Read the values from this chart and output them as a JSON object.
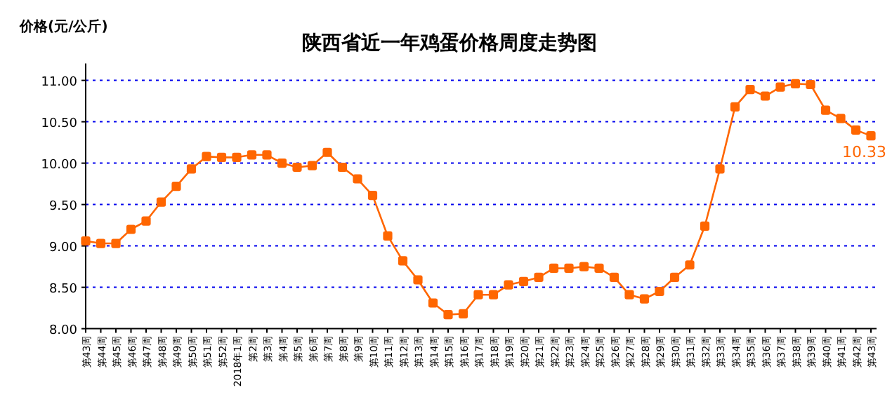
{
  "chart_data": {
    "type": "line",
    "title": "陕西省近一年鸡蛋价格周度走势图",
    "ylabel": "价格(元/公斤)",
    "categories": [
      "第43周",
      "第44周",
      "第45周",
      "第46周",
      "第47周",
      "第48周",
      "第49周",
      "第50周",
      "第51周",
      "第52周",
      "2018年1周",
      "第2周",
      "第3周",
      "第4周",
      "第5周",
      "第6周",
      "第7周",
      "第8周",
      "第9周",
      "第10周",
      "第11周",
      "第12周",
      "第13周",
      "第14周",
      "第15周",
      "第16周",
      "第17周",
      "第18周",
      "第19周",
      "第20周",
      "第21周",
      "第22周",
      "第23周",
      "第24周",
      "第25周",
      "第26周",
      "第27周",
      "第28周",
      "第29周",
      "第30周",
      "第31周",
      "第32周",
      "第33周",
      "第34周",
      "第35周",
      "第36周",
      "第37周",
      "第38周",
      "第39周",
      "第40周",
      "第41周",
      "第42周",
      "第43周"
    ],
    "series": [
      {
        "color": "#ff6600",
        "values": [
          9.06,
          9.03,
          9.03,
          9.2,
          9.3,
          9.53,
          9.72,
          9.93,
          10.08,
          10.07,
          10.07,
          10.1,
          10.1,
          10.0,
          9.95,
          9.97,
          10.13,
          9.95,
          9.81,
          9.61,
          9.12,
          8.82,
          8.59,
          8.31,
          8.17,
          8.18,
          8.41,
          8.41,
          8.53,
          8.57,
          8.62,
          8.73,
          8.73,
          8.75,
          8.73,
          8.62,
          8.41,
          8.36,
          8.45,
          8.62,
          8.77,
          9.24,
          9.93,
          10.68,
          10.89,
          10.81,
          10.92,
          10.96,
          10.95,
          10.64,
          10.54,
          10.4,
          10.33
        ],
        "value_labels": [
          null,
          null,
          null,
          null,
          null,
          null,
          null,
          null,
          null,
          null,
          null,
          null,
          null,
          null,
          null,
          null,
          null,
          null,
          null,
          null,
          null,
          null,
          null,
          null,
          null,
          null,
          null,
          null,
          null,
          null,
          null,
          null,
          null,
          null,
          null,
          null,
          null,
          null,
          null,
          null,
          null,
          null,
          null,
          null,
          null,
          null,
          null,
          null,
          null,
          null,
          null,
          null,
          "10.33"
        ]
      }
    ],
    "ylim": [
      8,
      11
    ],
    "yticks": [
      {
        "value": 8,
        "label": "8.00"
      },
      {
        "value": 8.5,
        "label": "8.50"
      },
      {
        "value": 9,
        "label": "9.00"
      },
      {
        "value": 9.5,
        "label": "9.50"
      },
      {
        "value": 10,
        "label": "10.00"
      },
      {
        "value": 10.5,
        "label": "10.50"
      },
      {
        "value": 11,
        "label": "11.00"
      }
    ],
    "grid": "y",
    "marker": "square",
    "line_style": "solid"
  }
}
